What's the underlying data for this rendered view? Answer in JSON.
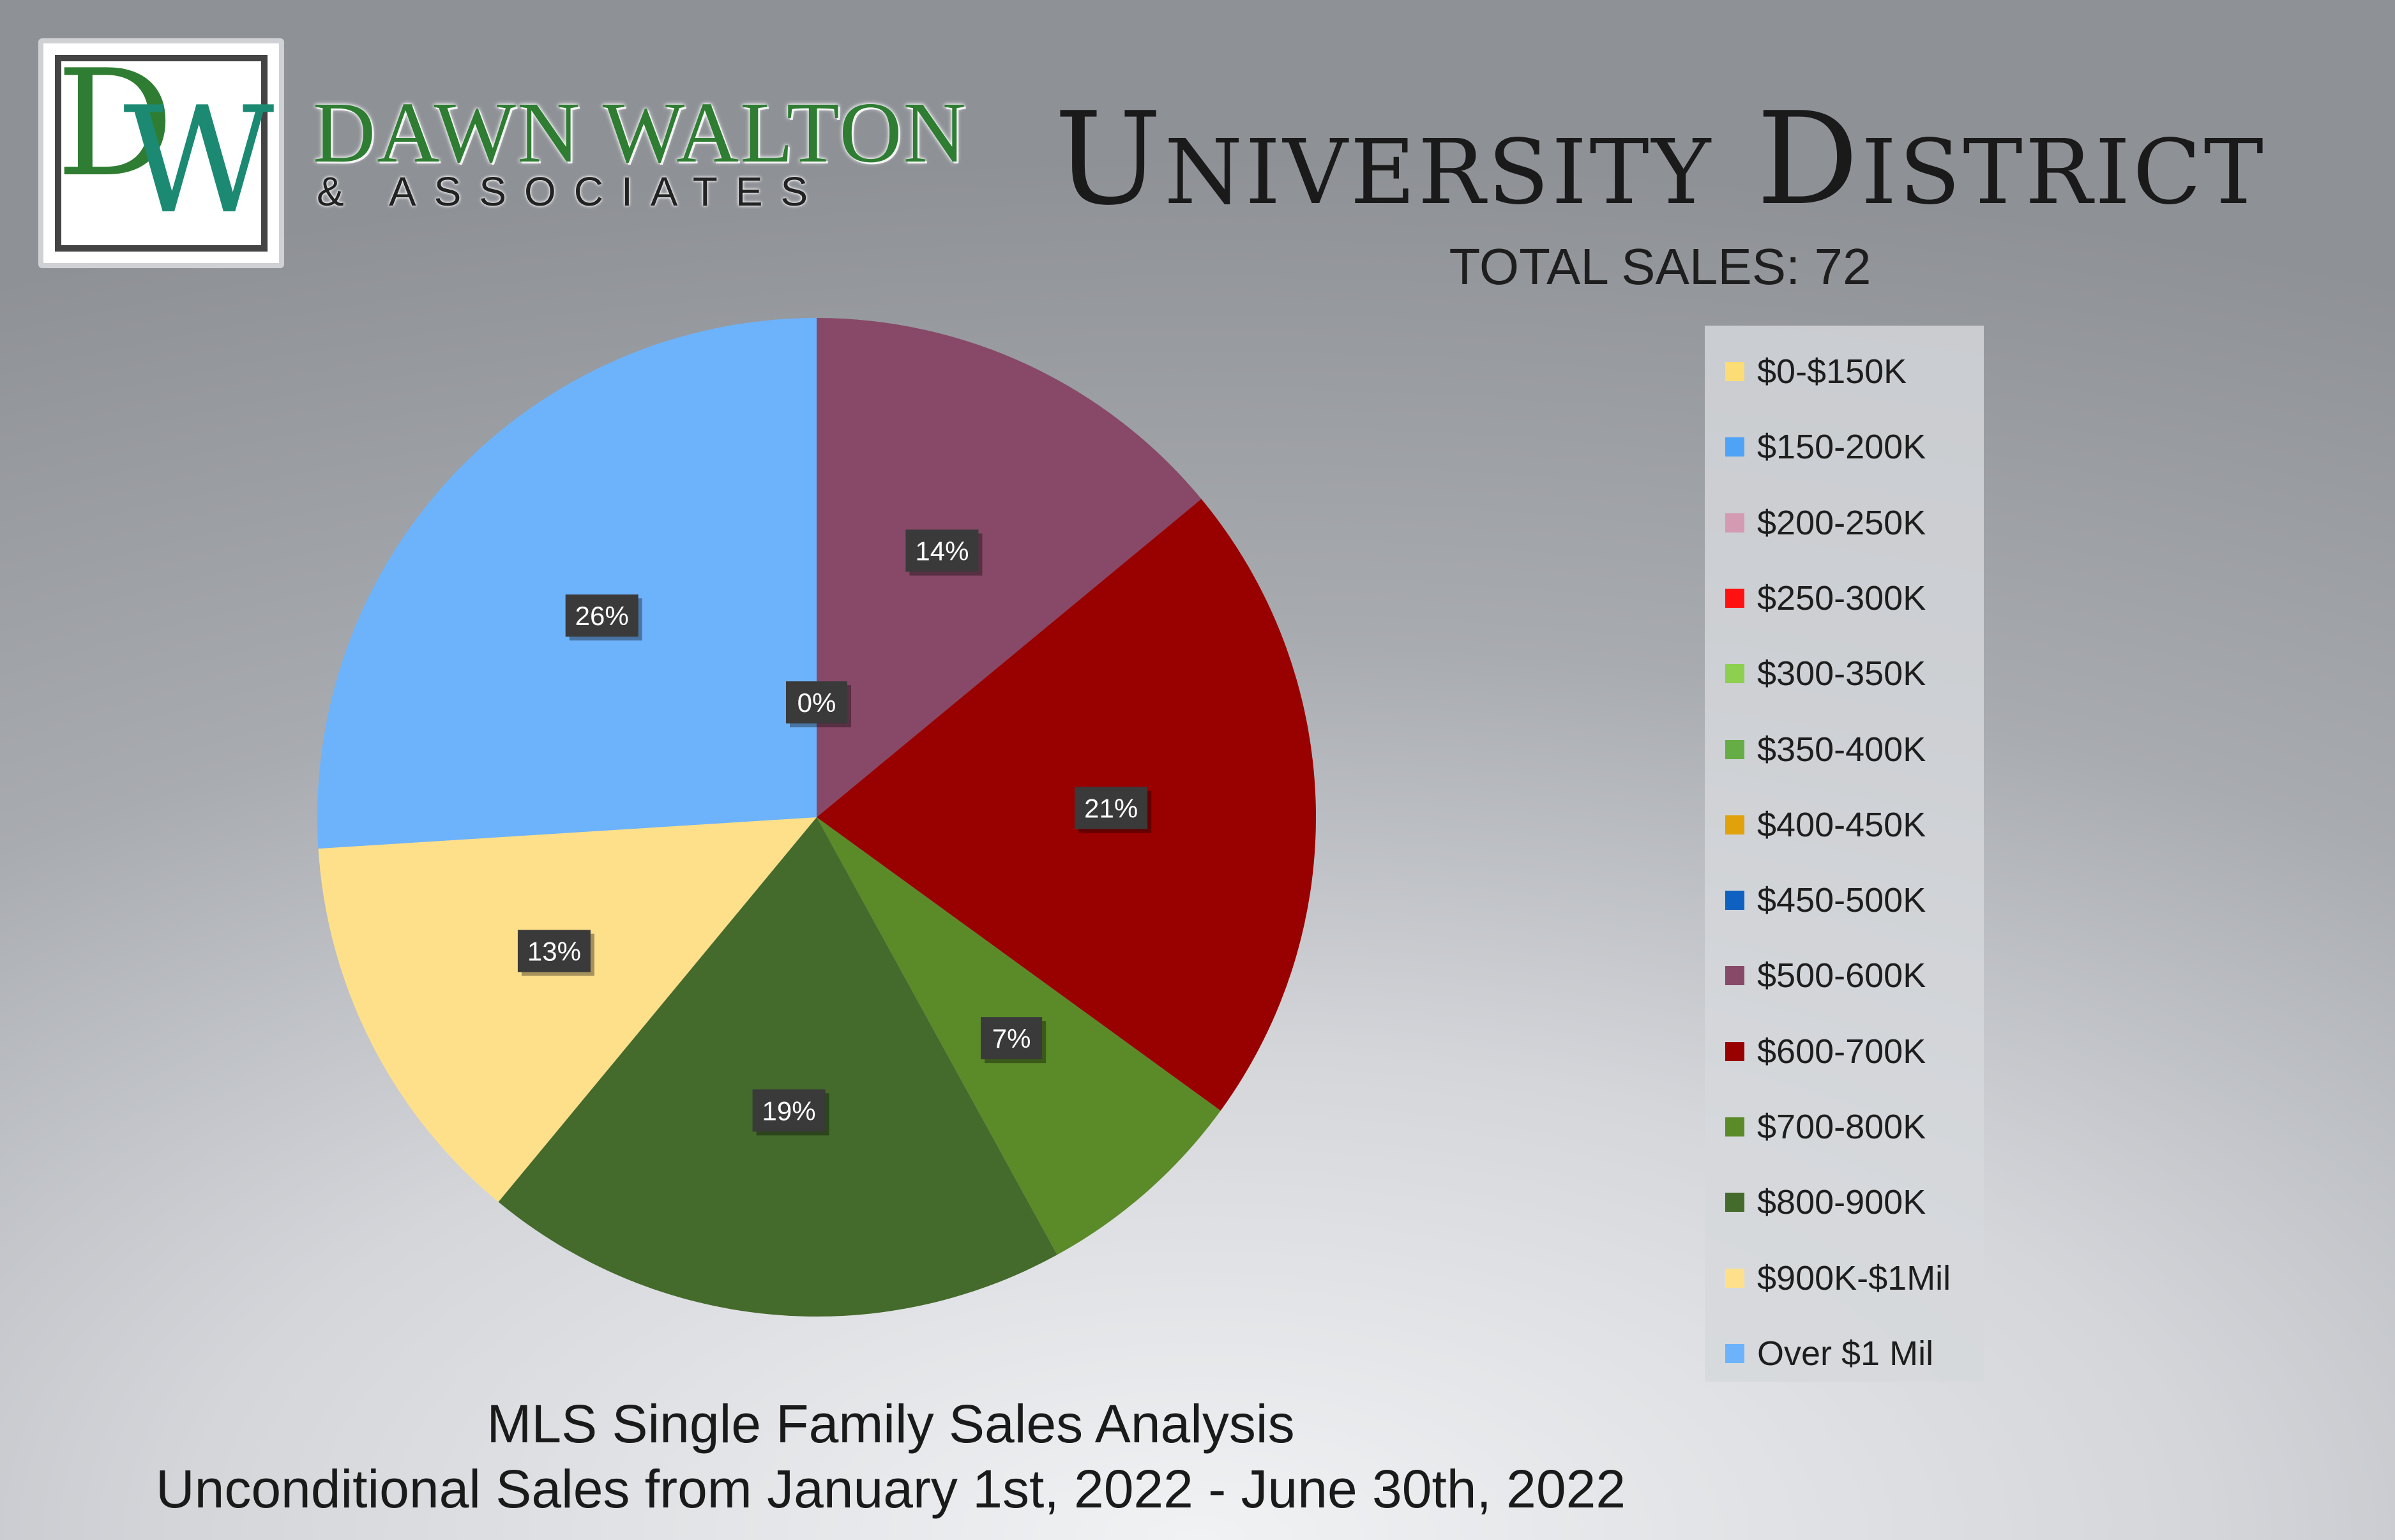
{
  "brand": {
    "monogram_d": "D",
    "monogram_w": "W",
    "name": "DAWN WALTON",
    "tagline": "& ASSOCIATES",
    "colors": {
      "green": "#2e7d32",
      "teal": "#1c8a72"
    }
  },
  "footer": {
    "line1": "MLS Single Family Sales Analysis",
    "line2": "Unconditional Sales from January 1st, 2022 - June 30th, 2022"
  },
  "chart_data": {
    "type": "pie",
    "title": "University District",
    "subtitle": "TOTAL SALES: 72",
    "legend_position": "right",
    "slices": [
      {
        "label": "$0-$150K",
        "percent": 0,
        "color": "#fcdc74",
        "data_label": null
      },
      {
        "label": "$150-200K",
        "percent": 0,
        "color": "#4ea3f6",
        "data_label": null
      },
      {
        "label": "$200-250K",
        "percent": 0,
        "color": "#d49ab2",
        "data_label": null
      },
      {
        "label": "$250-300K",
        "percent": 0,
        "color": "#ff1111",
        "data_label": null
      },
      {
        "label": "$300-350K",
        "percent": 0,
        "color": "#8dd04f",
        "data_label": null
      },
      {
        "label": "$350-400K",
        "percent": 0,
        "color": "#67ad45",
        "data_label": null
      },
      {
        "label": "$400-450K",
        "percent": 0,
        "color": "#e1a10b",
        "data_label": null
      },
      {
        "label": "$450-500K",
        "percent": 0,
        "color": "#0e61c0",
        "data_label": "0%"
      },
      {
        "label": "$500-600K",
        "percent": 14,
        "color": "#874967",
        "data_label": "14%"
      },
      {
        "label": "$600-700K",
        "percent": 21,
        "color": "#990000",
        "data_label": "21%"
      },
      {
        "label": "$700-800K",
        "percent": 7,
        "color": "#5b8a29",
        "data_label": "7%"
      },
      {
        "label": "$800-900K",
        "percent": 19,
        "color": "#446a2c",
        "data_label": "19%"
      },
      {
        "label": "$900K-$1Mil",
        "percent": 13,
        "color": "#ffe08a",
        "data_label": "13%"
      },
      {
        "label": "Over $1 Mil",
        "percent": 26,
        "color": "#6db3fb",
        "data_label": "26%"
      }
    ]
  }
}
